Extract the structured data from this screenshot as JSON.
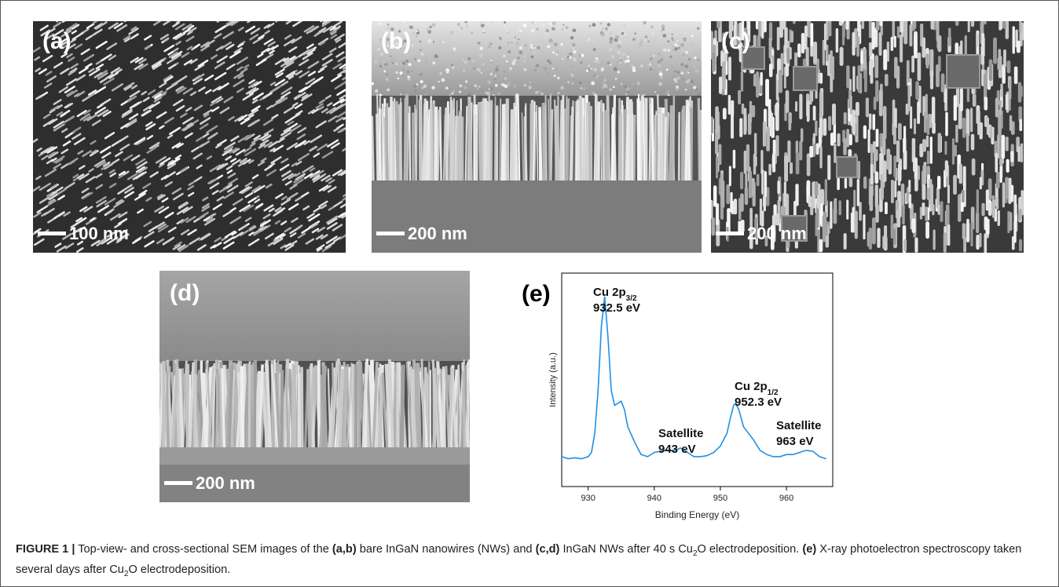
{
  "panels": [
    {
      "label": "(a)",
      "scale_bar": "100 nm"
    },
    {
      "label": "(b)",
      "scale_bar": "200 nm"
    },
    {
      "label": "(c)",
      "scale_bar": "200 nm"
    },
    {
      "label": "(d)",
      "scale_bar": "200 nm"
    }
  ],
  "chart_data": {
    "type": "line",
    "panel_label": "(e)",
    "xlabel": "Binding Energy (eV)",
    "ylabel": "Intensity (a.u.)",
    "x": [
      926,
      927,
      928,
      929,
      930,
      930.5,
      931,
      931.5,
      932,
      932.5,
      933,
      933.5,
      934,
      934.5,
      935,
      935.5,
      936,
      937,
      938,
      939,
      940,
      941,
      942,
      943,
      944,
      945,
      946,
      947,
      948,
      949,
      950,
      951,
      951.5,
      952,
      952.3,
      952.8,
      953.5,
      954,
      955,
      956,
      957,
      958,
      959,
      960,
      961,
      962,
      963,
      964,
      965,
      966
    ],
    "values": [
      14,
      13,
      13.5,
      13,
      14,
      16,
      25,
      45,
      75,
      89,
      70,
      45,
      38,
      39,
      40,
      36,
      28,
      21,
      15,
      14,
      16,
      16.5,
      17,
      17,
      18,
      16,
      14,
      14,
      14.5,
      16,
      19,
      25,
      32,
      38,
      39,
      36,
      28,
      26,
      22,
      17,
      15,
      14,
      14,
      15,
      15,
      16,
      17,
      16.5,
      14,
      13
    ],
    "color": "#1e90e6",
    "xlim": [
      926,
      967
    ],
    "ylim": [
      0,
      100
    ],
    "xticks": [
      930,
      940,
      950,
      960
    ],
    "annotations": [
      {
        "label": "Cu 2p",
        "sub": "3/2",
        "energy": "932.5 eV"
      },
      {
        "label": "Satellite",
        "energy": "943 eV"
      },
      {
        "label": "Cu 2p",
        "sub": "1/2",
        "energy": "952.3 eV"
      },
      {
        "label": "Satellite",
        "energy": "963 eV"
      }
    ]
  },
  "caption": [
    {
      "text": "FIGURE 1 |",
      "style": "bold"
    },
    {
      "text": " Top-view- and cross-sectional SEM images of the ",
      "style": "normal"
    },
    {
      "text": "(a,b)",
      "style": "bold"
    },
    {
      "text": " bare InGaN nanowires (NWs) and ",
      "style": "normal"
    },
    {
      "text": "(c,d)",
      "style": "bold"
    },
    {
      "text": " InGaN NWs after 40 s Cu",
      "style": "normal"
    },
    {
      "text": "2",
      "style": "sub"
    },
    {
      "text": "O electrodeposition. ",
      "style": "normal"
    },
    {
      "text": "(e)",
      "style": "bold"
    },
    {
      "text": " X-ray photoelectron spectroscopy taken several days after Cu",
      "style": "normal"
    },
    {
      "text": "2",
      "style": "sub"
    },
    {
      "text": "O electrodeposition.",
      "style": "normal"
    }
  ]
}
